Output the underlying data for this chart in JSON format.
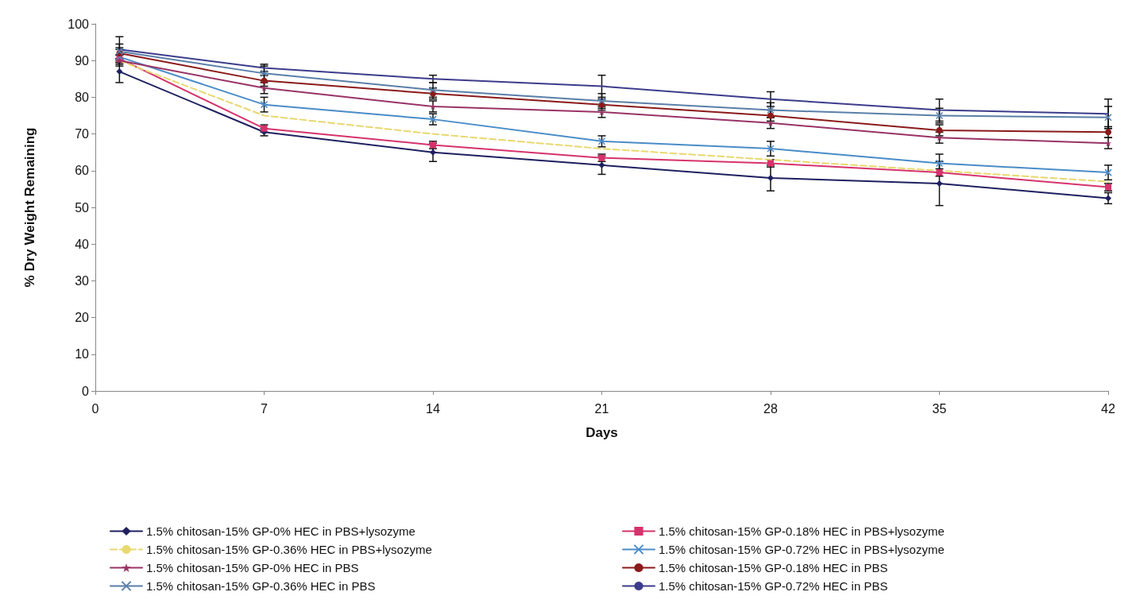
{
  "chart_data": {
    "type": "line",
    "xlabel": "Days",
    "ylabel": "% Dry Weight Remaining",
    "x": [
      1,
      7,
      14,
      21,
      28,
      35,
      42
    ],
    "xlim": [
      0,
      42
    ],
    "xticks": [
      0,
      7,
      14,
      21,
      28,
      35,
      42
    ],
    "ylim": [
      0,
      100
    ],
    "yticks": [
      0,
      10,
      20,
      30,
      40,
      50,
      60,
      70,
      80,
      90,
      100
    ],
    "grid": false,
    "legend": "bottom",
    "line_style": "solid",
    "series": [
      {
        "name": "1.5% chitosan-15% GP-0% HEC in PBS+lysozyme",
        "color": "#1f2060",
        "marker": "diamond",
        "values": [
          87,
          70.5,
          65,
          61.5,
          58,
          56.5,
          52.5
        ],
        "errors": [
          3,
          1,
          2.5,
          2.5,
          3.5,
          6,
          1.5
        ]
      },
      {
        "name": "1.5% chitosan-15% GP-0.18% HEC in PBS+lysozyme",
        "color": "#d6336c",
        "marker": "square",
        "values": [
          90.5,
          71.5,
          67,
          63.5,
          62,
          59.5,
          55.5
        ],
        "errors": [
          1,
          1,
          1,
          1,
          1,
          1,
          1
        ]
      },
      {
        "name": "1.5% chitosan-15% GP-0.36% HEC in PBS+lysozyme",
        "color": "#e8d870",
        "marker": "none",
        "line_style": "dashed",
        "values": [
          90,
          75,
          70,
          66,
          63,
          60,
          57
        ]
      },
      {
        "name": "1.5% chitosan-15% GP-0.72% HEC in PBS+lysozyme",
        "color": "#4a8cc8",
        "marker": "cross",
        "values": [
          91,
          78,
          74,
          68,
          66,
          62,
          59.5
        ],
        "errors": [
          2,
          2,
          1.5,
          1.5,
          2,
          2.5,
          2
        ]
      },
      {
        "name": "1.5% chitosan-15% GP-0% HEC in PBS",
        "color": "#993366",
        "marker": "star",
        "values": [
          90,
          82.5,
          77.5,
          76,
          73,
          69,
          67.5
        ],
        "errors": [
          1.5,
          1.5,
          1.5,
          1.5,
          1.5,
          1.5,
          1.5
        ]
      },
      {
        "name": "1.5% chitosan-15% GP-0.18% HEC in PBS",
        "color": "#8b1a1a",
        "marker": "circle",
        "values": [
          92,
          84.5,
          81,
          78,
          75,
          71,
          70.5
        ],
        "errors": [
          1.5,
          1.5,
          1.5,
          1.5,
          1.5,
          1.5,
          1.5
        ]
      },
      {
        "name": "1.5% chitosan-15% GP-0.36% HEC in PBS",
        "color": "#5a7fa8",
        "marker": "cross",
        "values": [
          92.5,
          86.5,
          82,
          79,
          76.5,
          75,
          74.5
        ],
        "errors": [
          2,
          2,
          2,
          2,
          2,
          2,
          3
        ]
      },
      {
        "name": "1.5% chitosan-15% GP-0.72% HEC in PBS",
        "color": "#3c3c8c",
        "marker": "none",
        "values": [
          93,
          88,
          85,
          83,
          79.5,
          76.5,
          75.5
        ],
        "errors": [
          3.5,
          1,
          1,
          3,
          2,
          3,
          4
        ]
      }
    ]
  }
}
